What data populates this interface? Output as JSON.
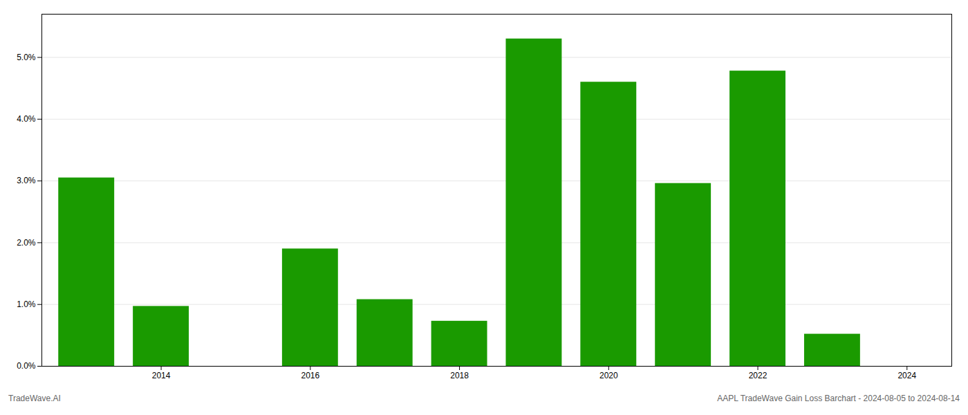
{
  "chart_data": {
    "type": "bar",
    "x": [
      2013,
      2014,
      2015,
      2016,
      2017,
      2018,
      2019,
      2020,
      2021,
      2022,
      2023
    ],
    "values": [
      0.0305,
      0.0097,
      0.0,
      0.019,
      0.0108,
      0.0073,
      0.053,
      0.046,
      0.0296,
      0.0478,
      0.0052
    ],
    "color": "#1a9a00",
    "xlim": [
      2012.4,
      2024.6
    ],
    "xticks": [
      2014,
      2016,
      2018,
      2020,
      2022,
      2024
    ],
    "ylim": [
      0,
      0.057
    ],
    "yticks": [
      {
        "value": 0.0,
        "label": "0.0%"
      },
      {
        "value": 0.01,
        "label": "1.0%"
      },
      {
        "value": 0.02,
        "label": "2.0%"
      },
      {
        "value": 0.03,
        "label": "3.0%"
      },
      {
        "value": 0.04,
        "label": "4.0%"
      },
      {
        "value": 0.05,
        "label": "5.0%"
      }
    ],
    "grid": "y",
    "annotations": [
      "TradeWave.AI",
      "AAPL TradeWave Gain Loss Barchart - 2024-08-05 to 2024-08-14"
    ]
  }
}
